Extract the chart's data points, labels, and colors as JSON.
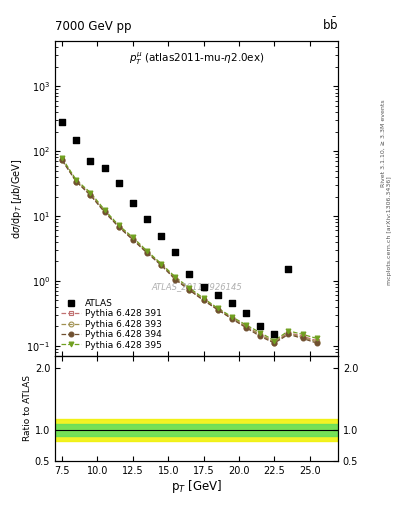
{
  "title_top": "7000 GeV pp",
  "title_top_right": "b$\\bar{b}$",
  "annotation_center": "$p_T^{\\mu}$ (atlas2011-mu-$\\eta$2.0ex)",
  "watermark": "ATLAS_2011_I926145",
  "right_label_top": "Rivet 3.1.10, ≥ 3.3M events",
  "right_label_bot": "mcplots.cern.ch [arXiv:1306.3436]",
  "ylabel_main": "dσ/dp$_T$ [μb/GeV]",
  "ylabel_ratio": "Ratio to ATLAS",
  "xlabel": "p$_T$ [GeV]",
  "xlim": [
    7,
    27
  ],
  "ylim_main_lo": 0.07,
  "ylim_main_hi": 5000,
  "ylim_ratio": [
    0.5,
    2.2
  ],
  "atlas_x": [
    7.5,
    8.5,
    9.5,
    10.5,
    11.5,
    12.5,
    13.5,
    14.5,
    15.5,
    16.5,
    17.5,
    18.5,
    19.5,
    20.5,
    21.5,
    22.5,
    23.5
  ],
  "atlas_y": [
    280,
    150,
    70,
    55,
    32,
    16,
    9,
    5,
    2.8,
    1.3,
    0.8,
    0.6,
    0.45,
    0.32,
    0.2,
    0.15,
    1.5
  ],
  "mc_x": [
    7.5,
    8.5,
    9.5,
    10.5,
    11.5,
    12.5,
    13.5,
    14.5,
    15.5,
    16.5,
    17.5,
    18.5,
    19.5,
    20.5,
    21.5,
    22.5,
    23.5,
    24.5,
    25.5
  ],
  "py391_y": [
    75,
    35,
    22,
    12,
    7,
    4.5,
    2.8,
    1.8,
    1.1,
    0.75,
    0.52,
    0.37,
    0.27,
    0.2,
    0.15,
    0.115,
    0.16,
    0.14,
    0.12
  ],
  "py393_y": [
    74,
    34,
    21,
    11.8,
    6.9,
    4.4,
    2.75,
    1.78,
    1.08,
    0.73,
    0.51,
    0.36,
    0.265,
    0.195,
    0.148,
    0.112,
    0.155,
    0.135,
    0.115
  ],
  "py394_y": [
    72,
    34,
    21,
    11.5,
    6.8,
    4.3,
    2.7,
    1.75,
    1.05,
    0.72,
    0.5,
    0.36,
    0.26,
    0.19,
    0.14,
    0.11,
    0.15,
    0.13,
    0.11
  ],
  "py395_y": [
    78,
    36,
    23,
    12.5,
    7.2,
    4.7,
    2.9,
    1.85,
    1.15,
    0.78,
    0.54,
    0.38,
    0.28,
    0.21,
    0.16,
    0.12,
    0.17,
    0.15,
    0.13
  ],
  "color_391": "#c07070",
  "color_393": "#a09050",
  "color_394": "#705030",
  "color_395": "#70a020",
  "ratio_green_lo": 0.9,
  "ratio_green_hi": 1.1,
  "ratio_yellow_lo": 0.82,
  "ratio_yellow_hi": 1.18,
  "ratio_line": 1.0
}
